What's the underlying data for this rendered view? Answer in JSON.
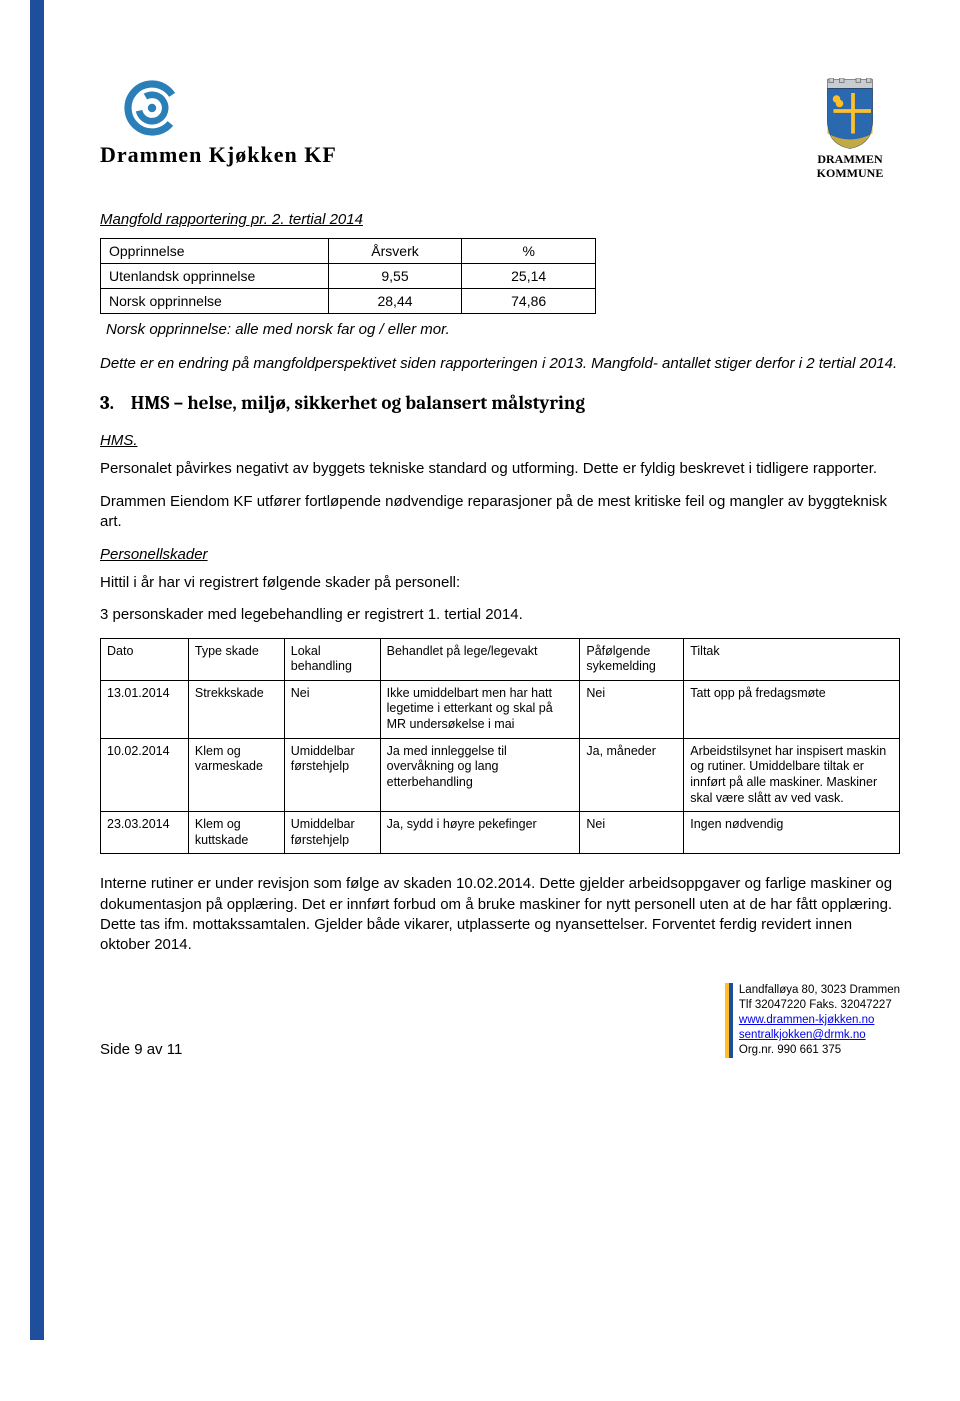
{
  "brand": {
    "name": "Drammen Kjøkken KF"
  },
  "kommune": {
    "line1": "DRAMMEN",
    "line2": "KOMMUNE"
  },
  "mangfold": {
    "title": "Mangfold rapportering pr. 2. tertial 2014",
    "table": {
      "columns": [
        "Opprinnelse",
        "Årsverk",
        "%"
      ],
      "rows": [
        [
          "Utenlandsk opprinnelse",
          "9,55",
          "25,14"
        ],
        [
          "Norsk opprinnelse",
          "28,44",
          "74,86"
        ]
      ],
      "col_widths": [
        "46%",
        "27%",
        "27%"
      ]
    },
    "footnote": "Norsk opprinnelse: alle med norsk far og / eller mor.",
    "explain": "Dette er en endring på mangfoldperspektivet siden rapporteringen i 2013. Mangfold- antallet stiger derfor i 2 tertial 2014."
  },
  "h2": {
    "num": "3.",
    "title": "HMS – helse, miljø, sikkerhet og balansert målstyring"
  },
  "hms": {
    "label": "HMS.",
    "p1": "Personalet påvirkes negativt av byggets tekniske standard og utforming. Dette er fyldig beskrevet i tidligere rapporter.",
    "p2": "Drammen Eiendom KF utfører fortløpende nødvendige reparasjoner på de mest kritiske feil og mangler av byggteknisk art."
  },
  "personell": {
    "label": "Personellskader",
    "p1": "Hittil i år har vi registrert følgende skader på personell:",
    "p2": "3 personskader med legebehandling er registrert 1. tertial 2014."
  },
  "skade_table": {
    "columns": [
      "Dato",
      "Type skade",
      "Lokal behandling",
      "Behandlet på lege/legevakt",
      "Påfølgende sykemelding",
      "Tiltak"
    ],
    "col_widths": [
      "11%",
      "12%",
      "12%",
      "25%",
      "13%",
      "27%"
    ],
    "rows": [
      {
        "dato": "13.01.2014",
        "type": "Strekkskade",
        "lokal": "Nei",
        "behandlet": "Ikke umiddelbart men har hatt legetime i etterkant og skal på MR undersøkelse i mai",
        "syk": "Nei",
        "tiltak": "Tatt opp på fredagsmøte"
      },
      {
        "dato": "10.02.2014",
        "type": "Klem og varmeskade",
        "lokal": "Umiddelbar førstehjelp",
        "behandlet": "Ja med innleggelse til overvåkning og lang etterbehandling",
        "syk": "Ja, måneder",
        "tiltak": "Arbeidstilsynet har inspisert maskin og rutiner. Umiddelbare tiltak er innført på alle maskiner. Maskiner skal være slått av ved vask."
      },
      {
        "dato": "23.03.2014",
        "type": "Klem og kuttskade",
        "lokal": "Umiddelbar førstehjelp",
        "behandlet": "Ja, sydd i høyre pekefinger",
        "syk": "Nei",
        "tiltak": "Ingen nødvendig"
      }
    ]
  },
  "conclusion": "Interne rutiner er under revisjon som følge av skaden 10.02.2014. Dette gjelder arbeidsoppgaver og farlige maskiner og dokumentasjon på opplæring. Det er innført forbud om å bruke maskiner for nytt personell uten at de har fått opplæring. Dette tas ifm. mottakssamtalen. Gjelder både vikarer, utplasserte og nyansettelser. Forventet ferdig revidert innen oktober 2014.",
  "footer": {
    "page": "Side 9 av 11",
    "address": "Landfalløya 80, 3023 Drammen",
    "phone": "Tlf 32047220 Faks. 32047227",
    "web": "www.drammen-kjøkken.no",
    "email": "sentralkjokken@drmk.no",
    "org": "Org.nr. 990 661 375"
  },
  "colors": {
    "blue_bar": "#1f4e9c",
    "swirl_blue": "#2a7fb8",
    "shield_blue": "#2a68b0",
    "gold": "#ffbf2b",
    "link": "#0000ee",
    "text": "#000000",
    "bg": "#ffffff"
  }
}
